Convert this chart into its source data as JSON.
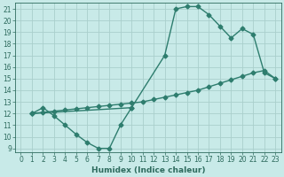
{
  "line1_x": [
    1,
    2,
    3,
    4,
    5,
    6,
    7,
    8,
    9,
    10
  ],
  "line1_y": [
    12.0,
    12.5,
    11.8,
    11.0,
    10.2,
    9.5,
    9.0,
    9.0,
    11.0,
    12.5
  ],
  "line2_x": [
    1,
    2,
    3,
    4,
    5,
    6,
    7,
    8,
    9,
    10,
    11,
    12,
    13,
    14,
    15,
    16,
    17,
    18,
    19,
    20,
    21,
    22,
    23
  ],
  "line2_y": [
    12.0,
    12.1,
    12.2,
    12.3,
    12.4,
    12.5,
    12.6,
    12.7,
    12.8,
    12.9,
    13.0,
    13.2,
    13.4,
    13.6,
    13.8,
    14.0,
    14.3,
    14.6,
    14.9,
    15.2,
    15.5,
    15.7,
    15.0
  ],
  "line3_x": [
    1,
    10,
    13,
    14,
    15,
    16,
    17,
    18,
    19,
    20,
    21,
    22,
    23
  ],
  "line3_y": [
    12.0,
    12.5,
    17.0,
    21.0,
    21.2,
    21.2,
    20.5,
    19.5,
    18.5,
    19.3,
    18.8,
    15.5,
    15.0
  ],
  "line_color": "#2e7d6e",
  "bg_color": "#c8eae8",
  "grid_color": "#aacfcc",
  "xlabel": "Humidex (Indice chaleur)",
  "xlim": [
    -0.5,
    23.5
  ],
  "ylim": [
    8.7,
    21.5
  ],
  "yticks": [
    9,
    10,
    11,
    12,
    13,
    14,
    15,
    16,
    17,
    18,
    19,
    20,
    21
  ],
  "xticks": [
    0,
    1,
    2,
    3,
    4,
    5,
    6,
    7,
    8,
    9,
    10,
    11,
    12,
    13,
    14,
    15,
    16,
    17,
    18,
    19,
    20,
    21,
    22,
    23
  ],
  "marker": "D",
  "markersize": 2.5,
  "linewidth": 1.0,
  "font_color": "#2e6b5e",
  "tick_fontsize": 5.5,
  "xlabel_fontsize": 6.5
}
